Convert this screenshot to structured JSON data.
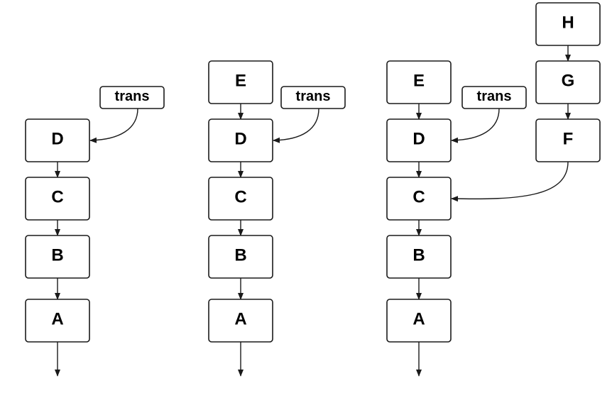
{
  "diagram": {
    "columns": [
      {
        "id": "col1",
        "nodes": [
          {
            "id": "trans",
            "label": "trans"
          },
          {
            "id": "D",
            "label": "D"
          },
          {
            "id": "C",
            "label": "C"
          },
          {
            "id": "B",
            "label": "B"
          },
          {
            "id": "A",
            "label": "A"
          }
        ]
      },
      {
        "id": "col2",
        "nodes": [
          {
            "id": "E",
            "label": "E"
          },
          {
            "id": "trans",
            "label": "trans"
          },
          {
            "id": "D",
            "label": "D"
          },
          {
            "id": "C",
            "label": "C"
          },
          {
            "id": "B",
            "label": "B"
          },
          {
            "id": "A",
            "label": "A"
          }
        ]
      },
      {
        "id": "col3",
        "nodes": [
          {
            "id": "E",
            "label": "E"
          },
          {
            "id": "trans",
            "label": "trans"
          },
          {
            "id": "D",
            "label": "D"
          },
          {
            "id": "C",
            "label": "C"
          },
          {
            "id": "B",
            "label": "B"
          },
          {
            "id": "A",
            "label": "A"
          },
          {
            "id": "H",
            "label": "H"
          },
          {
            "id": "G",
            "label": "G"
          },
          {
            "id": "F",
            "label": "F"
          }
        ]
      }
    ],
    "edges": {
      "col1": [
        [
          "trans",
          "D"
        ],
        [
          "D",
          "C"
        ],
        [
          "C",
          "B"
        ],
        [
          "B",
          "A"
        ],
        [
          "A",
          "out"
        ]
      ],
      "col2": [
        [
          "E",
          "D"
        ],
        [
          "trans",
          "D"
        ],
        [
          "D",
          "C"
        ],
        [
          "C",
          "B"
        ],
        [
          "B",
          "A"
        ],
        [
          "A",
          "out"
        ]
      ],
      "col3": [
        [
          "E",
          "D"
        ],
        [
          "trans",
          "D"
        ],
        [
          "D",
          "C"
        ],
        [
          "C",
          "B"
        ],
        [
          "B",
          "A"
        ],
        [
          "A",
          "out"
        ],
        [
          "H",
          "G"
        ],
        [
          "G",
          "F"
        ],
        [
          "F",
          "C"
        ]
      ]
    }
  }
}
